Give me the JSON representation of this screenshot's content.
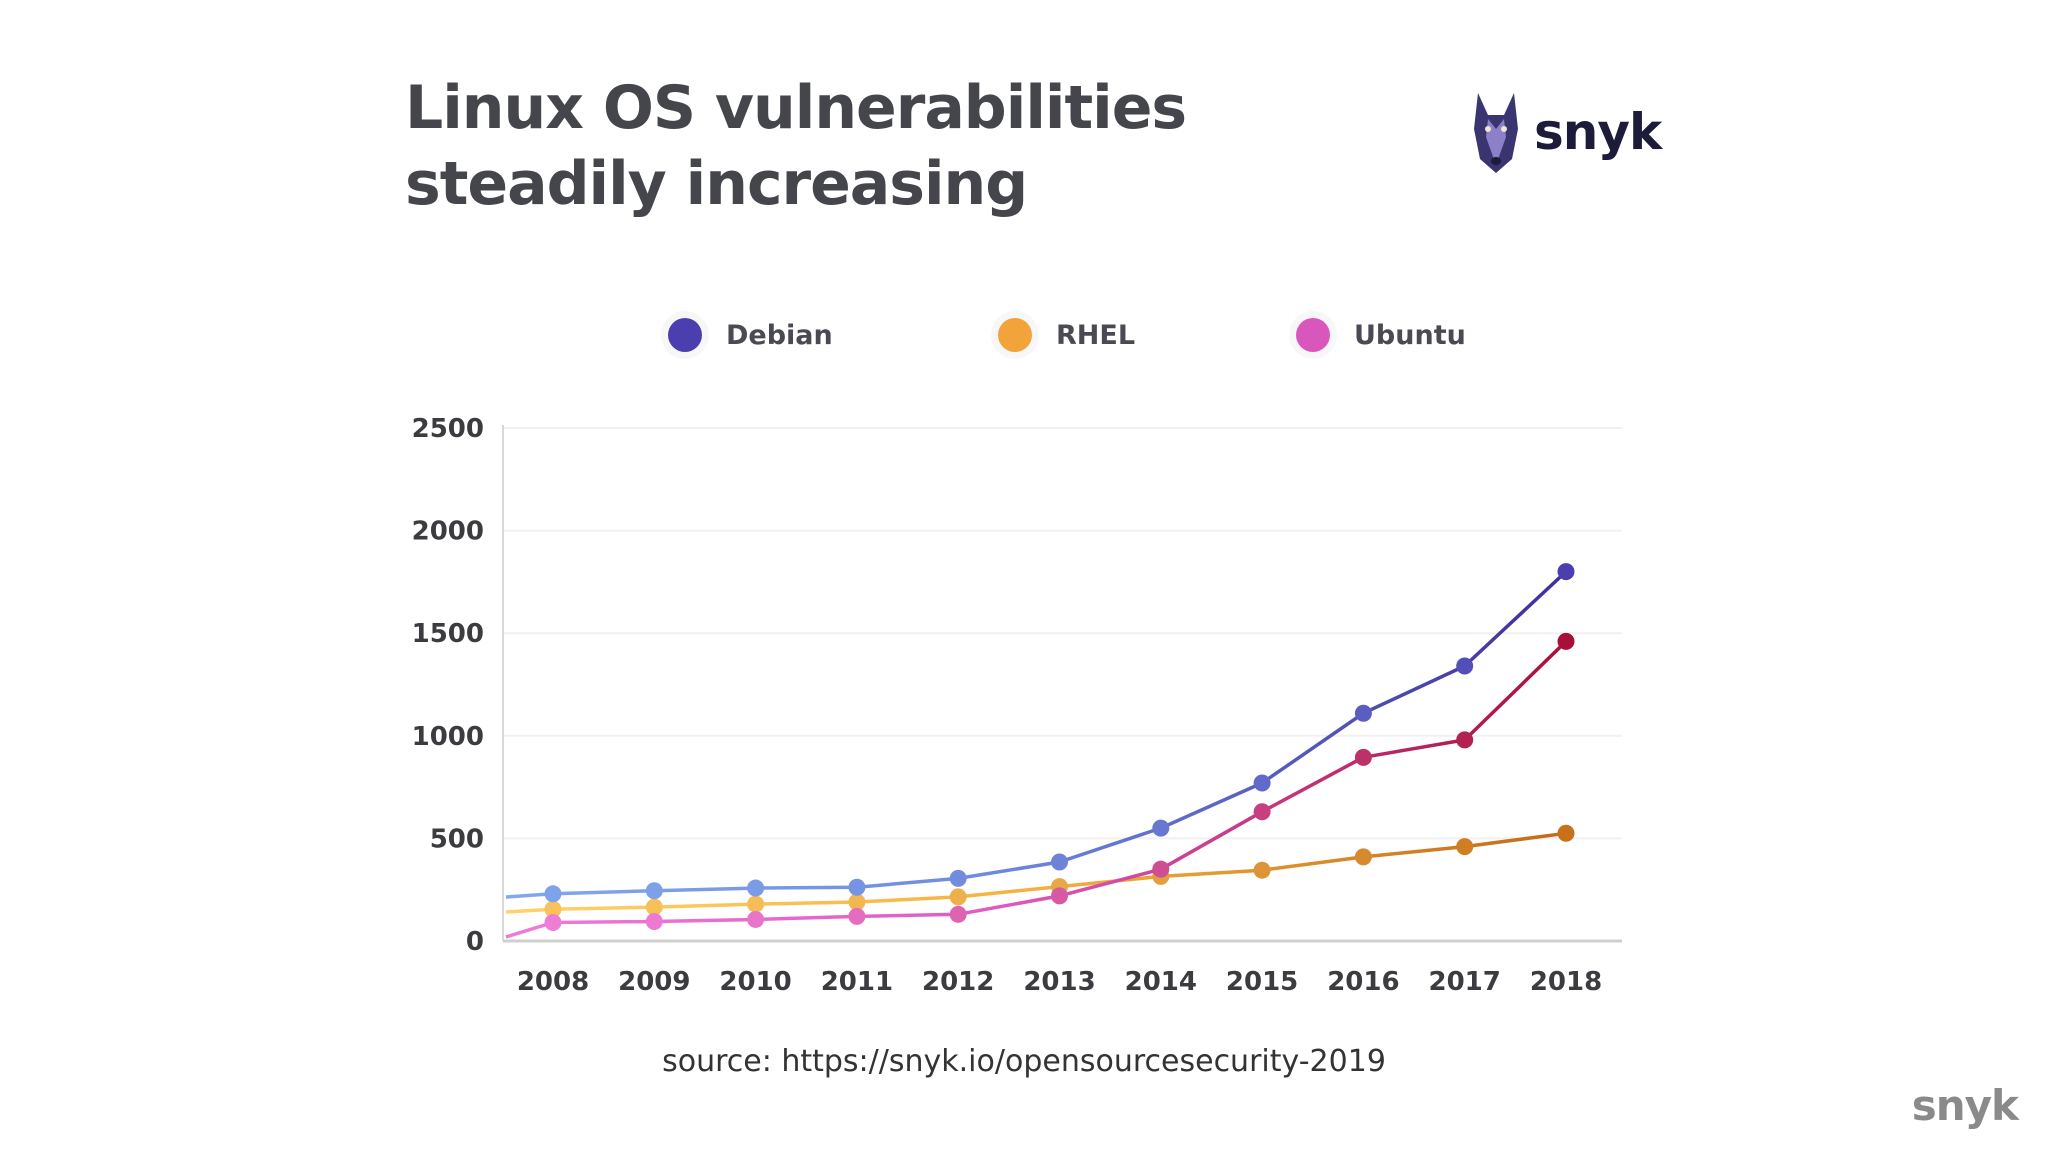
{
  "header": {
    "title": "Linux OS vulnerabilities steadily increasing",
    "brand": "snyk"
  },
  "footer": {
    "source": "source: https://snyk.io/opensourcesecurity-2019",
    "brand": "snyk"
  },
  "colors": {
    "debian": "#4b3fb0",
    "debian_light": "#7fa3ea",
    "rhel": "#f2a33a",
    "rhel_dark": "#c9701a",
    "ubuntu": "#d957bd",
    "ubuntu_dark": "#a8103a"
  },
  "chart_data": {
    "type": "line",
    "title": "Linux OS vulnerabilities steadily increasing",
    "xlabel": "",
    "ylabel": "",
    "ylim": [
      0,
      2500
    ],
    "yticks": [
      0,
      500,
      1000,
      1500,
      2000,
      2500
    ],
    "grid": true,
    "legend_position": "top",
    "x": [
      "2008",
      "2009",
      "2010",
      "2011",
      "2012",
      "2013",
      "2014",
      "2015",
      "2016",
      "2017",
      "2018"
    ],
    "series": [
      {
        "name": "Debian",
        "values": [
          230,
          245,
          258,
          262,
          305,
          385,
          550,
          770,
          1110,
          1340,
          1800
        ]
      },
      {
        "name": "RHEL",
        "values": [
          155,
          165,
          180,
          190,
          215,
          265,
          315,
          345,
          410,
          460,
          525
        ]
      },
      {
        "name": "Ubuntu",
        "values": [
          90,
          95,
          105,
          120,
          130,
          220,
          350,
          630,
          895,
          980,
          1460
        ]
      }
    ]
  }
}
